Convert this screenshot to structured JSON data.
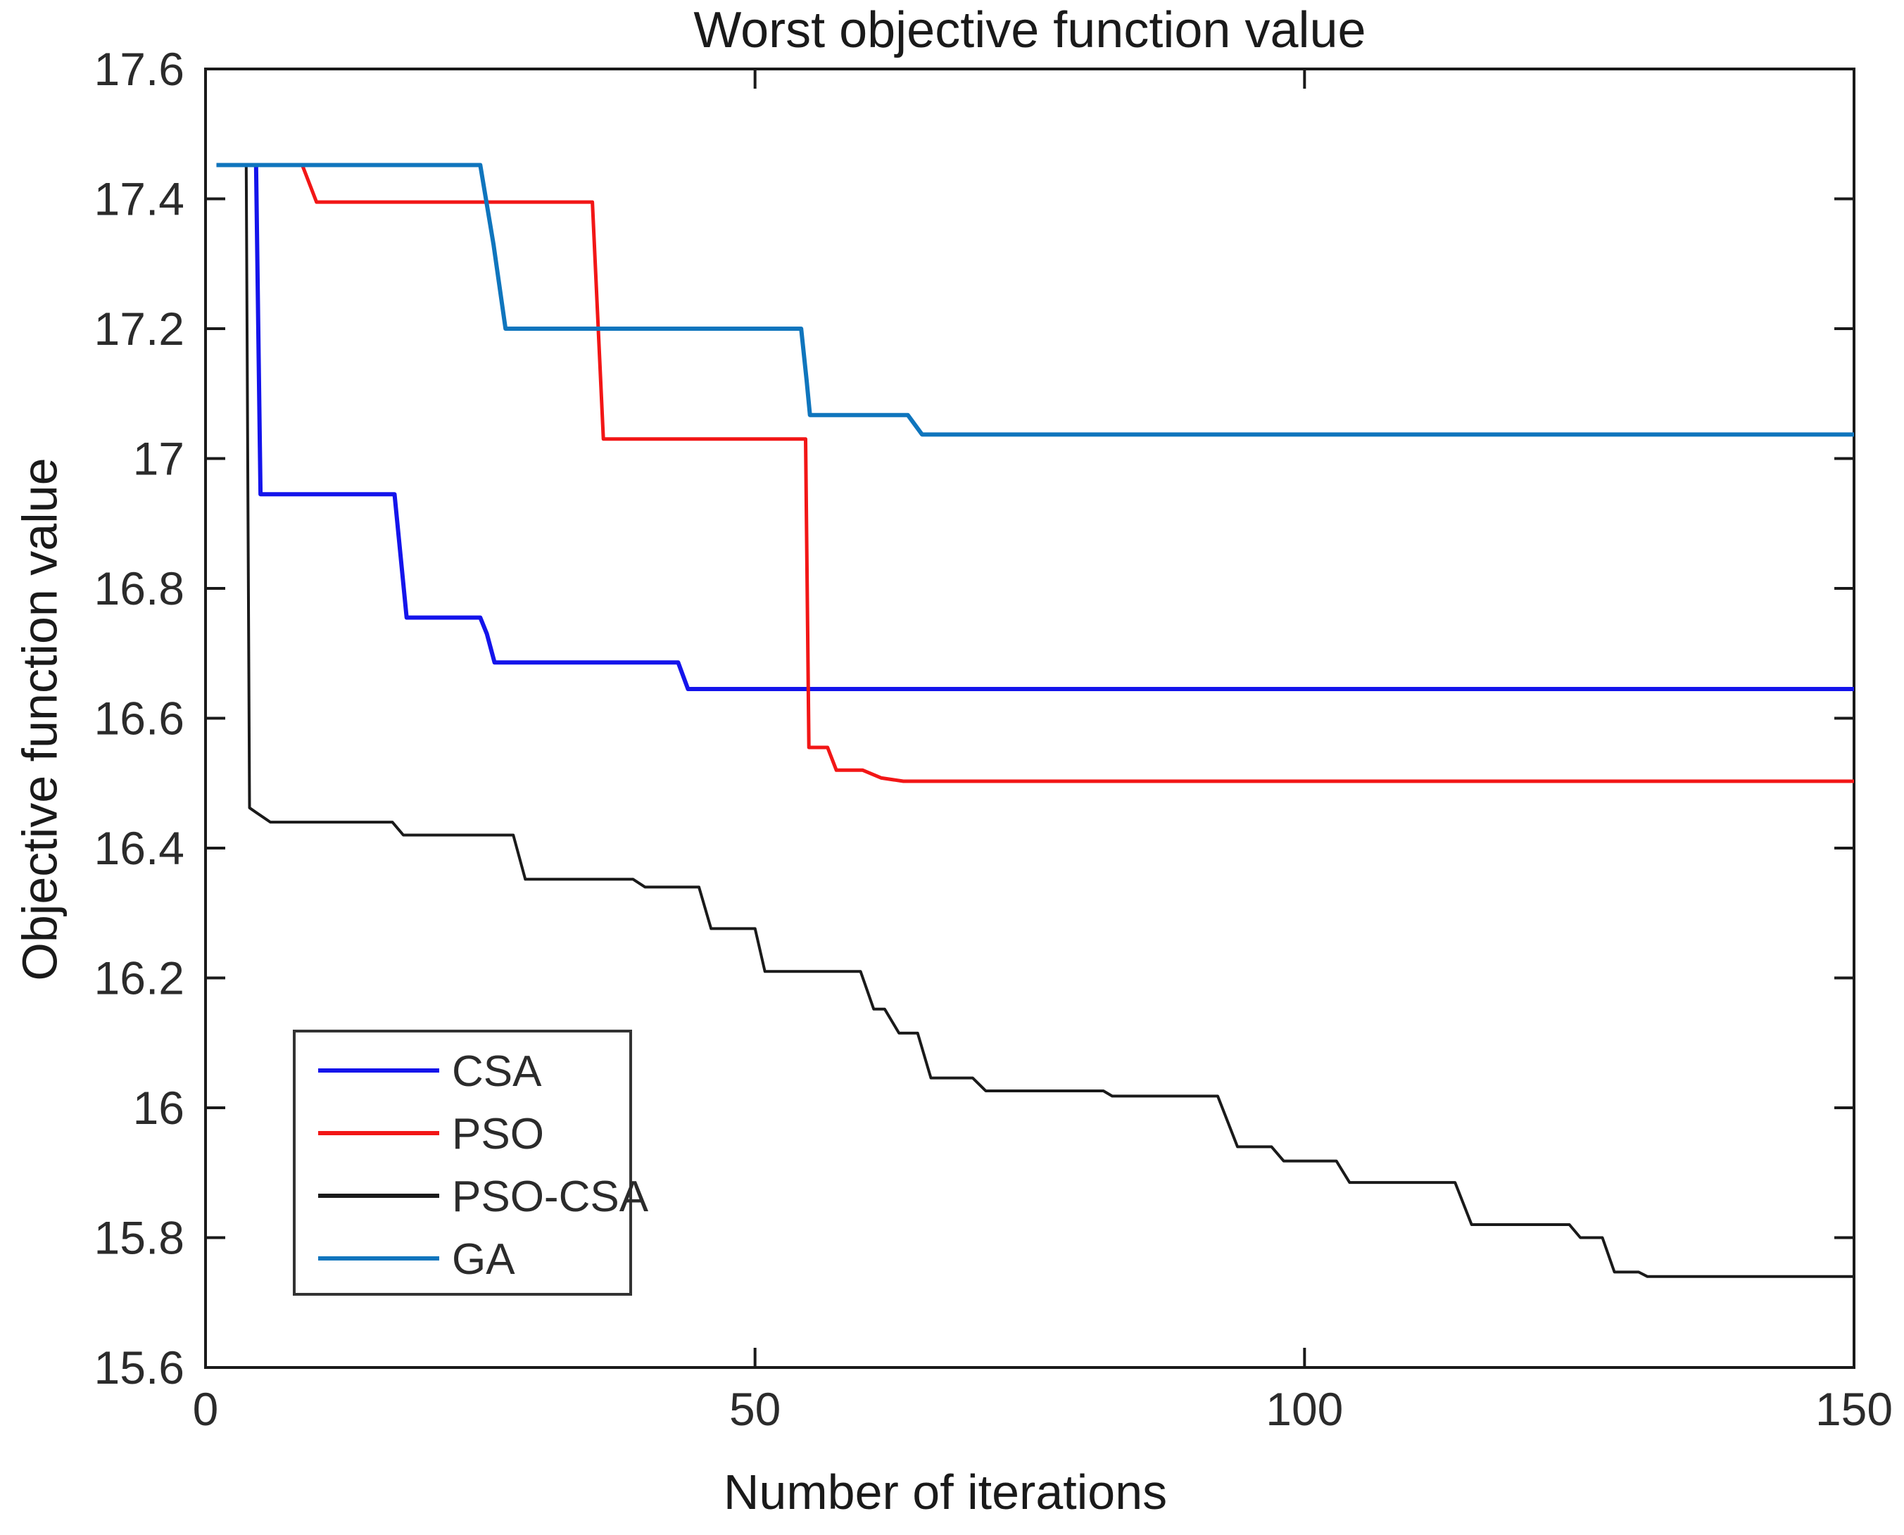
{
  "figure": {
    "title": "Worst objective function value",
    "xlabel": "Number of iterations",
    "ylabel": "Objective function value"
  },
  "chart_data": {
    "type": "line",
    "title": "Worst objective function value",
    "xlabel": "Number of iterations",
    "ylabel": "Objective function value",
    "xlim": [
      0,
      150
    ],
    "ylim": [
      15.6,
      17.6
    ],
    "xticks": [
      0,
      50,
      100,
      150
    ],
    "yticks": [
      15.6,
      15.8,
      16,
      16.2,
      16.4,
      16.6,
      16.8,
      17,
      17.2,
      17.4,
      17.6
    ],
    "grid": false,
    "legend_position": "lower-left-inside",
    "axis_color": "#1a1a1a",
    "series": [
      {
        "name": "CSA",
        "color": "#1414eb",
        "line_width": 6,
        "points": [
          [
            1,
            17.452
          ],
          [
            4.6,
            17.452
          ],
          [
            5.0,
            16.945
          ],
          [
            17.2,
            16.945
          ],
          [
            18.3,
            16.755
          ],
          [
            25.0,
            16.755
          ],
          [
            25.6,
            16.73
          ],
          [
            26.3,
            16.686
          ],
          [
            43.0,
            16.686
          ],
          [
            43.9,
            16.645
          ],
          [
            150,
            16.645
          ]
        ]
      },
      {
        "name": "PSO",
        "color": "#f21616",
        "line_width": 5,
        "points": [
          [
            1,
            17.452
          ],
          [
            8.8,
            17.452
          ],
          [
            10.1,
            17.395
          ],
          [
            35.2,
            17.395
          ],
          [
            36.2,
            17.03
          ],
          [
            54.6,
            17.03
          ],
          [
            54.9,
            16.555
          ],
          [
            56.6,
            16.555
          ],
          [
            57.4,
            16.52
          ],
          [
            59.8,
            16.52
          ],
          [
            61.5,
            16.508
          ],
          [
            63.5,
            16.503
          ],
          [
            150,
            16.503
          ]
        ]
      },
      {
        "name": "PSO-CSA",
        "color": "#1a1a1a",
        "line_width": 4,
        "points": [
          [
            1,
            17.452
          ],
          [
            3.7,
            17.452
          ],
          [
            4.0,
            16.462
          ],
          [
            4.6,
            16.455
          ],
          [
            5.9,
            16.44
          ],
          [
            17.0,
            16.44
          ],
          [
            18.0,
            16.42
          ],
          [
            28.0,
            16.42
          ],
          [
            29.1,
            16.352
          ],
          [
            38.9,
            16.352
          ],
          [
            40.0,
            16.34
          ],
          [
            44.9,
            16.34
          ],
          [
            46.0,
            16.276
          ],
          [
            50.0,
            16.276
          ],
          [
            50.9,
            16.21
          ],
          [
            59.6,
            16.21
          ],
          [
            60.8,
            16.152
          ],
          [
            61.8,
            16.152
          ],
          [
            63.1,
            16.115
          ],
          [
            64.8,
            16.115
          ],
          [
            66.0,
            16.046
          ],
          [
            69.8,
            16.046
          ],
          [
            71.0,
            16.026
          ],
          [
            81.7,
            16.026
          ],
          [
            82.5,
            16.018
          ],
          [
            92.1,
            16.018
          ],
          [
            93.9,
            15.94
          ],
          [
            97.0,
            15.94
          ],
          [
            98.1,
            15.918
          ],
          [
            102.9,
            15.918
          ],
          [
            104.1,
            15.885
          ],
          [
            113.7,
            15.885
          ],
          [
            115.2,
            15.82
          ],
          [
            124.1,
            15.82
          ],
          [
            125.1,
            15.8
          ],
          [
            127.1,
            15.8
          ],
          [
            128.2,
            15.747
          ],
          [
            130.4,
            15.747
          ],
          [
            131.2,
            15.74
          ],
          [
            150,
            15.74
          ]
        ]
      },
      {
        "name": "GA",
        "color": "#0f75bd",
        "line_width": 6,
        "points": [
          [
            1,
            17.452
          ],
          [
            25.0,
            17.452
          ],
          [
            26.2,
            17.33
          ],
          [
            27.3,
            17.2
          ],
          [
            54.2,
            17.2
          ],
          [
            54.7,
            17.12
          ],
          [
            55.0,
            17.067
          ],
          [
            63.9,
            17.067
          ],
          [
            65.2,
            17.037
          ],
          [
            150,
            17.037
          ]
        ]
      }
    ]
  }
}
